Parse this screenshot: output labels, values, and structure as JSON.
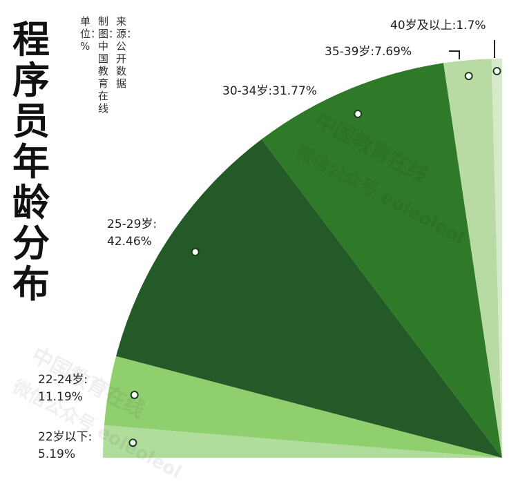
{
  "title": "程序员年龄分布",
  "meta": {
    "source": "来源：公开数据",
    "made_by": "制图：中国教育在线",
    "unit": "单位：%"
  },
  "watermark": {
    "line1": "中国教育在线",
    "line2": "微信公众号 eoleoleol"
  },
  "colors": {
    "under22": "#b1dd9c",
    "22_24": "#8fcf6e",
    "25_29": "#245a28",
    "30_34": "#2f7a28",
    "35_39": "#b7dba2",
    "40plus": "#d6eac9"
  },
  "chart_data": {
    "type": "pie",
    "title": "程序员年龄分布",
    "unit": "%",
    "slices": [
      {
        "label": "22岁以下",
        "value": 5.19,
        "color": "#b1dd9c",
        "display": "22岁以下:",
        "display2": "5.19%"
      },
      {
        "label": "22-24岁",
        "value": 11.19,
        "color": "#8fcf6e",
        "display": "22-24岁:",
        "display2": "11.19%"
      },
      {
        "label": "25-29岁",
        "value": 42.46,
        "color": "#245a28",
        "display": "25-29岁:",
        "display2": "42.46%"
      },
      {
        "label": "30-34岁",
        "value": 31.77,
        "color": "#2f7a28",
        "display": "30-34岁:31.77%",
        "display2": ""
      },
      {
        "label": "35-39岁",
        "value": 7.69,
        "color": "#b7dba2",
        "display": "35-39岁:7.69%",
        "display2": ""
      },
      {
        "label": "40岁及以上",
        "value": 1.7,
        "color": "#d6eac9",
        "display": "40岁及以上:1.7%",
        "display2": ""
      }
    ]
  }
}
